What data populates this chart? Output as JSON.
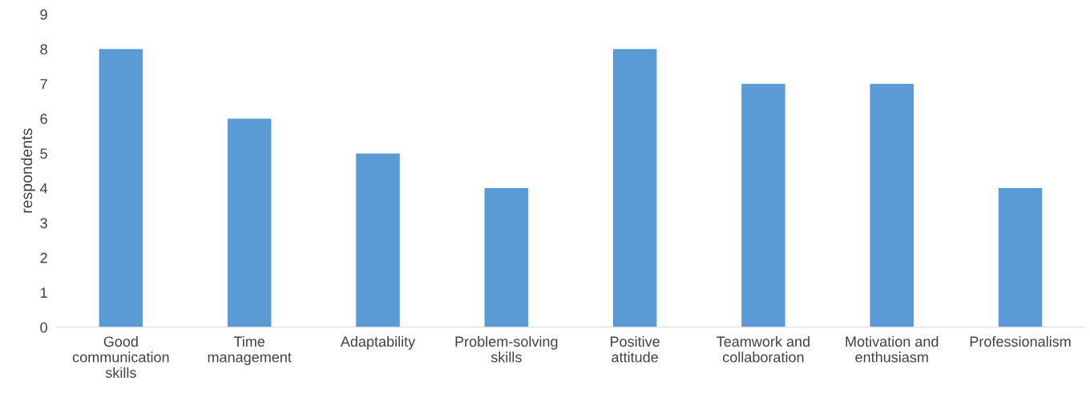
{
  "chart_data": {
    "type": "bar",
    "ylabel": "respondents",
    "categories": [
      "Good\ncommunication\nskills",
      "Time\nmanagement",
      "Adaptability",
      "Problem-solving\nskills",
      "Positive\nattitude",
      "Teamwork and\ncollaboration",
      "Motivation and\nenthusiasm",
      "Professionalism"
    ],
    "values": [
      8,
      6,
      5,
      4,
      8,
      7,
      7,
      4
    ],
    "color": "#5b9bd5",
    "ylim": [
      0,
      9
    ],
    "yticks": [
      0,
      1,
      2,
      3,
      4,
      5,
      6,
      7,
      8,
      9
    ],
    "grid": false,
    "legend": false
  }
}
